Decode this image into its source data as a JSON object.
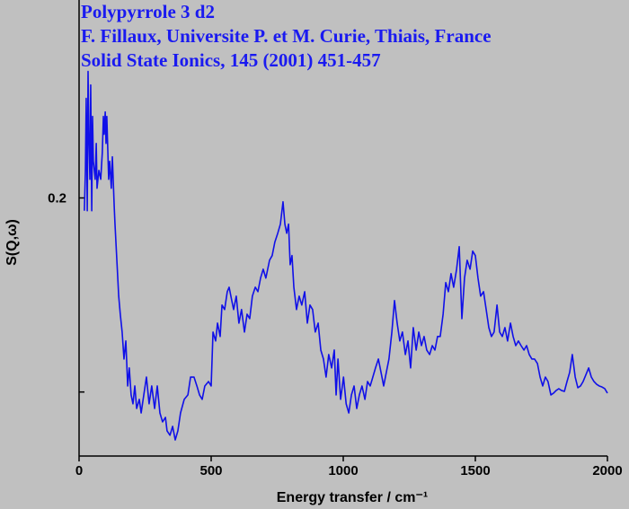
{
  "chart_data": {
    "type": "line",
    "title": "Polypyrrole 3 d2",
    "annotations": [
      "F. Fillaux, Universite P. et M. Curie, Thiais, France",
      "Solid State Ionics, 145 (2001) 451-457"
    ],
    "x_label": "Energy transfer / cm⁻¹",
    "y_label": "S(Q,ω)",
    "color": "#1010e8",
    "xlim": [
      0,
      2000
    ],
    "xticks": [
      0,
      500,
      1000,
      1500,
      2000
    ],
    "ylim": [
      0.067,
      0.302
    ],
    "yticks": [
      {
        "value": 0.1,
        "label": null
      },
      0.2
    ],
    "x": [
      20,
      24,
      27,
      31,
      34,
      37,
      41,
      44,
      48,
      51,
      54,
      61,
      65,
      68,
      75,
      82,
      88,
      92,
      95,
      99,
      102,
      105,
      112,
      116,
      122,
      126,
      133,
      136,
      143,
      150,
      156,
      163,
      170,
      177,
      184,
      190,
      197,
      204,
      211,
      218,
      228,
      235,
      245,
      255,
      265,
      275,
      286,
      296,
      306,
      316,
      327,
      333,
      344,
      354,
      364,
      374,
      384,
      398,
      412,
      422,
      435,
      446,
      456,
      466,
      476,
      490,
      500,
      507,
      517,
      524,
      534,
      541,
      551,
      561,
      568,
      578,
      585,
      595,
      605,
      615,
      626,
      636,
      646,
      656,
      667,
      677,
      687,
      697,
      707,
      721,
      731,
      741,
      752,
      762,
      772,
      779,
      786,
      793,
      799,
      806,
      813,
      823,
      833,
      843,
      854,
      864,
      874,
      884,
      894,
      905,
      915,
      925,
      935,
      945,
      956,
      966,
      973,
      980,
      990,
      1001,
      1011,
      1021,
      1031,
      1041,
      1051,
      1061,
      1071,
      1082,
      1092,
      1102,
      1112,
      1122,
      1133,
      1143,
      1153,
      1163,
      1173,
      1184,
      1194,
      1204,
      1214,
      1224,
      1235,
      1245,
      1255,
      1265,
      1276,
      1286,
      1296,
      1306,
      1316,
      1327,
      1337,
      1347,
      1357,
      1367,
      1378,
      1388,
      1398,
      1408,
      1418,
      1429,
      1439,
      1449,
      1459,
      1469,
      1480,
      1490,
      1500,
      1510,
      1520,
      1531,
      1541,
      1551,
      1561,
      1571,
      1582,
      1592,
      1602,
      1612,
      1622,
      1633,
      1643,
      1653,
      1663,
      1673,
      1684,
      1694,
      1704,
      1714,
      1724,
      1735,
      1745,
      1755,
      1765,
      1775,
      1786,
      1796,
      1806,
      1816,
      1826,
      1837,
      1847,
      1857,
      1867,
      1878,
      1888,
      1898,
      1908,
      1918,
      1929,
      1939,
      1949,
      1959,
      1969,
      1979,
      1990,
      2000
    ],
    "values": [
      0.1934,
      0.2142,
      0.2513,
      0.1934,
      0.2652,
      0.2328,
      0.2096,
      0.2582,
      0.1934,
      0.242,
      0.2189,
      0.2096,
      0.2281,
      0.205,
      0.2142,
      0.2096,
      0.2235,
      0.242,
      0.2328,
      0.2443,
      0.2281,
      0.242,
      0.2096,
      0.2189,
      0.205,
      0.2212,
      0.1957,
      0.1865,
      0.1679,
      0.1494,
      0.1401,
      0.1309,
      0.117,
      0.1263,
      0.1031,
      0.1124,
      0.0985,
      0.0939,
      0.1031,
      0.0915,
      0.0962,
      0.0892,
      0.0985,
      0.1077,
      0.0939,
      0.1031,
      0.0915,
      0.1031,
      0.0892,
      0.0846,
      0.0869,
      0.08,
      0.0777,
      0.0823,
      0.0753,
      0.08,
      0.0892,
      0.0962,
      0.0985,
      0.1077,
      0.1077,
      0.1031,
      0.0985,
      0.0962,
      0.1031,
      0.1054,
      0.1031,
      0.1309,
      0.1263,
      0.1355,
      0.1286,
      0.1448,
      0.1425,
      0.1517,
      0.154,
      0.1471,
      0.1425,
      0.1494,
      0.1355,
      0.1425,
      0.1309,
      0.1401,
      0.1378,
      0.1494,
      0.154,
      0.1517,
      0.1587,
      0.1633,
      0.1587,
      0.1679,
      0.1703,
      0.1772,
      0.1818,
      0.1865,
      0.198,
      0.1865,
      0.1818,
      0.1865,
      0.1656,
      0.1703,
      0.154,
      0.1425,
      0.1494,
      0.1448,
      0.1517,
      0.1355,
      0.1448,
      0.1425,
      0.1309,
      0.1355,
      0.1216,
      0.117,
      0.1077,
      0.1193,
      0.1124,
      0.1216,
      0.0985,
      0.117,
      0.0962,
      0.1077,
      0.0939,
      0.0892,
      0.0985,
      0.1031,
      0.0915,
      0.0985,
      0.1031,
      0.0962,
      0.1054,
      0.1031,
      0.1077,
      0.1124,
      0.117,
      0.1101,
      0.1031,
      0.1101,
      0.117,
      0.1309,
      0.1471,
      0.1355,
      0.1263,
      0.1309,
      0.1193,
      0.1263,
      0.1124,
      0.1332,
      0.1216,
      0.1309,
      0.1239,
      0.1286,
      0.1216,
      0.1193,
      0.1239,
      0.1216,
      0.1286,
      0.1286,
      0.1401,
      0.1564,
      0.1517,
      0.161,
      0.154,
      0.1633,
      0.1749,
      0.1378,
      0.1587,
      0.1679,
      0.1633,
      0.1726,
      0.1703,
      0.1587,
      0.1494,
      0.1517,
      0.1425,
      0.1332,
      0.1286,
      0.1309,
      0.1448,
      0.1309,
      0.1286,
      0.1332,
      0.1263,
      0.1355,
      0.1286,
      0.1239,
      0.1263,
      0.1239,
      0.1216,
      0.1239,
      0.1193,
      0.117,
      0.117,
      0.1147,
      0.1077,
      0.1031,
      0.1077,
      0.1054,
      0.0985,
      0.0994,
      0.1008,
      0.1017,
      0.1008,
      0.1003,
      0.1054,
      0.1101,
      0.1193,
      0.1077,
      0.1022,
      0.1031,
      0.1054,
      0.1087,
      0.1124,
      0.1077,
      0.1054,
      0.104,
      0.1031,
      0.1026,
      0.1017,
      0.0994
    ]
  }
}
